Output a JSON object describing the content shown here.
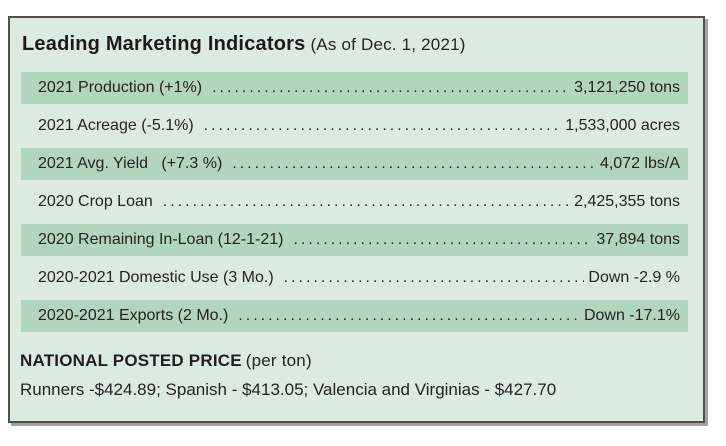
{
  "panel": {
    "title": "Leading Marketing Indicators",
    "title_suffix": "(As of Dec. 1, 2021)",
    "rows": [
      {
        "label": "2021 Production (+1%)",
        "value": "3,121,250 tons",
        "highlighted": true
      },
      {
        "label": "2021 Acreage (-5.1%)",
        "value": "1,533,000 acres",
        "highlighted": false
      },
      {
        "label": "2021 Avg. Yield   (+7.3 %)",
        "value": "4,072 lbs/A",
        "highlighted": true
      },
      {
        "label": "2020 Crop Loan",
        "value": "2,425,355 tons",
        "highlighted": false
      },
      {
        "label": "2020 Remaining In-Loan (12-1-21)",
        "value": "37,894 tons",
        "highlighted": true
      },
      {
        "label": "2020-2021 Domestic Use (3 Mo.)",
        "value": "Down -2.9 %",
        "highlighted": false
      },
      {
        "label": "2020-2021 Exports (2 Mo.)",
        "value": "Down -17.1%",
        "highlighted": true
      }
    ],
    "footer": {
      "heading": "NATIONAL POSTED PRICE",
      "heading_suffix": "(per ton)",
      "prices_line": "Runners -$424.89; Spanish - $413.05; Valencia and Virginias - $427.70"
    },
    "colors": {
      "panel_bg": "#dcebdf",
      "row_highlight_bg": "#b2d5bf",
      "border": "#4f4f4f",
      "shadow": "#a3a3a3",
      "text": "#232323"
    }
  }
}
